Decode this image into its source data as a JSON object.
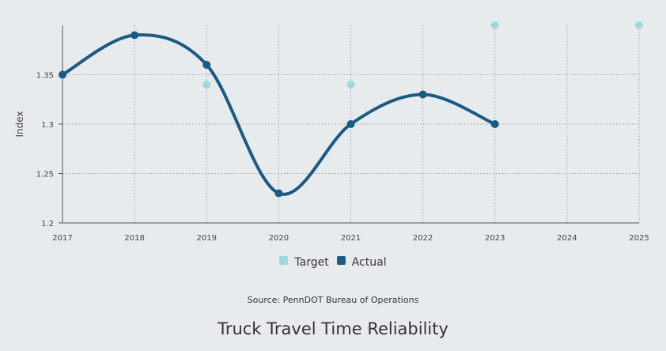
{
  "chart_data": {
    "type": "line",
    "title": "Truck Travel Time Reliability",
    "source": "Source: PennDOT Bureau of Operations",
    "ylabel": "Index",
    "xlabel": "",
    "x": [
      2017,
      2018,
      2019,
      2020,
      2021,
      2022,
      2023,
      2024,
      2025
    ],
    "xticks": [
      "2017",
      "2018",
      "2019",
      "2020",
      "2021",
      "2022",
      "2023",
      "2024",
      "2025"
    ],
    "ylim": [
      1.2,
      1.4
    ],
    "yticks": [
      "1.2",
      "1.25",
      "1.3",
      "1.35"
    ],
    "grid": true,
    "legend_position": "bottom",
    "series": [
      {
        "name": "Target",
        "style": "points",
        "color": "#a3d5df",
        "points": [
          [
            2019,
            1.34
          ],
          [
            2021,
            1.34
          ],
          [
            2023,
            1.4
          ],
          [
            2025,
            1.4
          ]
        ]
      },
      {
        "name": "Actual",
        "style": "smooth-line",
        "color": "#1b5a82",
        "points": [
          [
            2017,
            1.35
          ],
          [
            2018,
            1.39
          ],
          [
            2019,
            1.36
          ],
          [
            2020,
            1.23
          ],
          [
            2021,
            1.3
          ],
          [
            2022,
            1.33
          ],
          [
            2023,
            1.3
          ]
        ]
      }
    ]
  }
}
